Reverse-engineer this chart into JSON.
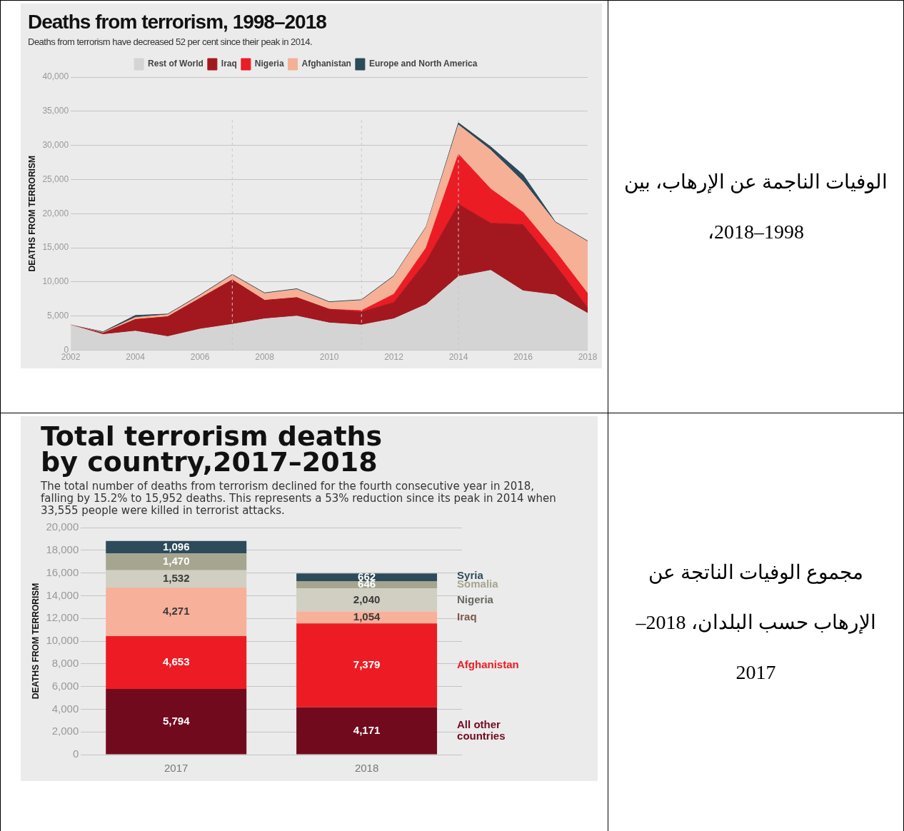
{
  "chart_data": [
    {
      "type": "area",
      "title": "Deaths from terrorism, 1998–2018",
      "subtitle": "Deaths from terrorism have decreased 52 per cent since their peak in 2014.",
      "ylabel": "DEATHS FROM TERRORISM",
      "stacked": true,
      "marker": "none",
      "grid": "y",
      "legend": "top",
      "x": [
        2002,
        2003,
        2004,
        2005,
        2006,
        2007,
        2008,
        2009,
        2010,
        2011,
        2012,
        2013,
        2014,
        2015,
        2016,
        2017,
        2018
      ],
      "xlim": [
        2002,
        2018
      ],
      "xticks": [
        2002,
        2004,
        2006,
        2008,
        2010,
        2012,
        2014,
        2016,
        2018
      ],
      "ylim": [
        0,
        40000
      ],
      "yticks": [
        0,
        {
          "value": 5000,
          "label": "5,000"
        },
        {
          "value": 10000,
          "label": "10,000"
        },
        {
          "value": 15000,
          "label": "15,000"
        },
        {
          "value": 20000,
          "label": "20,000"
        },
        {
          "value": 25000,
          "label": "25,000"
        },
        {
          "value": 30000,
          "label": "30,000"
        },
        {
          "value": 35000,
          "label": "35,000"
        },
        {
          "value": 40000,
          "label": "40,000"
        }
      ],
      "series": [
        {
          "name": "Rest of World",
          "color": "#d4d4d4",
          "values": [
            3700,
            2300,
            2800,
            2000,
            3100,
            3800,
            4600,
            5000,
            4000,
            3700,
            4600,
            6700,
            10800,
            11700,
            8700,
            8100,
            5400
          ]
        },
        {
          "name": "Iraq",
          "color": "#a3181f",
          "values": [
            0,
            200,
            1700,
            2900,
            4500,
            6500,
            2700,
            2700,
            2000,
            1900,
            2400,
            6300,
            10600,
            6900,
            9700,
            4400,
            800
          ]
        },
        {
          "name": "Nigeria",
          "color": "#ec1c24",
          "values": [
            0,
            0,
            0,
            0,
            0,
            0,
            0,
            0,
            0,
            200,
            1200,
            2000,
            7300,
            5000,
            1800,
            2000,
            2100
          ]
        },
        {
          "name": "Afghanistan",
          "color": "#f6b096",
          "values": [
            0,
            100,
            300,
            300,
            400,
            700,
            1000,
            1200,
            1000,
            1500,
            2600,
            3000,
            4300,
            5700,
            4500,
            4200,
            7600
          ]
        },
        {
          "name": "Europe and North America",
          "color": "#2c4a58",
          "values": [
            0,
            100,
            300,
            100,
            100,
            100,
            100,
            100,
            100,
            100,
            100,
            100,
            300,
            500,
            1000,
            100,
            100
          ]
        }
      ],
      "ref_lines": [
        {
          "axis": "x",
          "value": 2007,
          "color": "#c8c8c8",
          "line_style": "dashed"
        },
        {
          "axis": "x",
          "value": 2011,
          "color": "#c8c8c8",
          "line_style": "dashed"
        },
        {
          "axis": "x",
          "value": 2014,
          "color": "#c8c8c8",
          "line_style": "dashed"
        }
      ],
      "annotations": [
        "الوفيات الناجمة عن الإرهاب، بين 1998–2018،"
      ]
    },
    {
      "type": "bar",
      "title": "Total terrorism deaths by country,2017–2018",
      "subtitle": "The total number of deaths from terrorism declined for the fourth consecutive year in 2018, falling by 15.2% to 15,952 deaths. This represents a 53% reduction since its peak in 2014 when 33,555 people were killed in terrorist attacks.",
      "ylabel": "DEATHS FROM TERRORISM",
      "stacked": true,
      "grid": "y",
      "categories": [
        "2017",
        "2018"
      ],
      "ylim": [
        0,
        20000
      ],
      "yticks": [
        0,
        {
          "value": 2000,
          "label": "2,000"
        },
        {
          "value": 4000,
          "label": "4,000"
        },
        {
          "value": 6000,
          "label": "6,000"
        },
        {
          "value": 8000,
          "label": "8,000"
        },
        {
          "value": 10000,
          "label": "10,000"
        },
        {
          "value": 12000,
          "label": "12,000"
        },
        {
          "value": 14000,
          "label": "14,000"
        },
        {
          "value": 16000,
          "label": "16,000"
        },
        {
          "value": 18000,
          "label": "18,000"
        },
        {
          "value": 20000,
          "label": "20,000"
        }
      ],
      "series": [
        {
          "name": "All other countries",
          "color": "#720a1e",
          "values": [
            5794,
            4171
          ],
          "value_labels": [
            "5,794",
            "4,171"
          ]
        },
        {
          "name": "Afghanistan",
          "color": "#ed1c24",
          "values": [
            4653,
            7379
          ],
          "value_labels": [
            "4,653",
            "7,379"
          ]
        },
        {
          "name": "Iraq",
          "color": "#f7b09a",
          "values": [
            4271,
            1054
          ],
          "value_labels": [
            "4,271",
            "1,054"
          ]
        },
        {
          "name": "Nigeria",
          "color": "#d0cfc2",
          "values": [
            1532,
            2040
          ],
          "value_labels": [
            "1,532",
            "2,040"
          ]
        },
        {
          "name": "Somalia",
          "color": "#a5a590",
          "values": [
            1470,
            646
          ],
          "value_labels": [
            "1,470",
            "646"
          ]
        },
        {
          "name": "Syria",
          "color": "#2d4b5a",
          "values": [
            1096,
            662
          ],
          "value_labels": [
            "1,096",
            "662"
          ]
        }
      ],
      "annotations": [
        "مجموع الوفيات الناتجة عن الإرهاب حسب البلدان، 2018–2017"
      ]
    }
  ]
}
